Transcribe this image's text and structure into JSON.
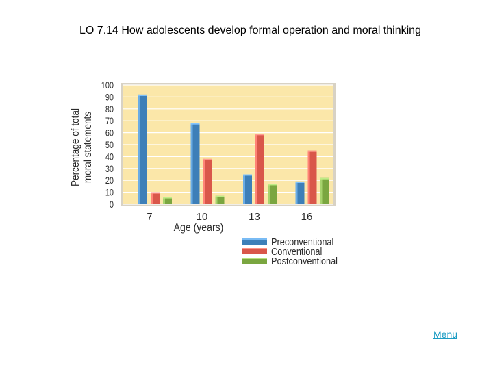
{
  "slide": {
    "title": "LO 7.14  How adolescents develop formal operation and moral thinking",
    "menu_link": "Menu"
  },
  "chart_data": {
    "type": "bar",
    "categories": [
      "7",
      "10",
      "13",
      "16"
    ],
    "series": [
      {
        "name": "Preconventional",
        "values": [
          92,
          68,
          25,
          19
        ],
        "color": "#3d7fb8"
      },
      {
        "name": "Conventional",
        "values": [
          10,
          38,
          59,
          45
        ],
        "color": "#d9574a"
      },
      {
        "name": "Postconventional",
        "values": [
          6,
          7,
          17,
          22
        ],
        "color": "#7aa640"
      }
    ],
    "title": "",
    "xlabel": "Age (years)",
    "ylabel": "Percentage of total moral statements",
    "ylim": [
      0,
      100
    ],
    "yticks": [
      "0",
      "10",
      "20",
      "30",
      "40",
      "50",
      "60",
      "70",
      "80",
      "90",
      "100"
    ],
    "grid": true,
    "legend": "bottom-right",
    "colors": {
      "plot_bg": "#fbe7a9",
      "grid": "#ffffff",
      "frame": "#d8d2c4"
    }
  }
}
